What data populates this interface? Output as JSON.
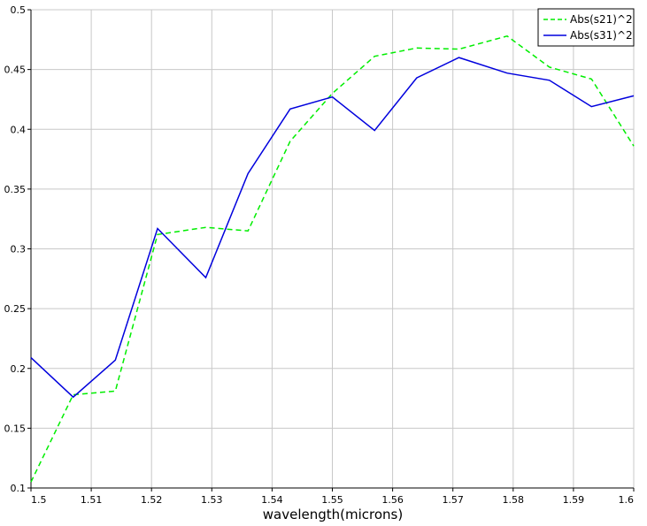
{
  "chart_data": {
    "type": "line",
    "title": "",
    "xlabel": "wavelength(microns)",
    "ylabel": "",
    "xlim": [
      1.5,
      1.6
    ],
    "ylim": [
      0.1,
      0.5
    ],
    "xticks": [
      "1.5",
      "1.51",
      "1.52",
      "1.53",
      "1.54",
      "1.55",
      "1.56",
      "1.57",
      "1.58",
      "1.59",
      "1.6"
    ],
    "yticks": [
      "0.1",
      "0.15",
      "0.2",
      "0.25",
      "0.3",
      "0.35",
      "0.4",
      "0.45",
      "0.5"
    ],
    "grid": true,
    "legend_position": "top-right",
    "x": [
      1.5,
      1.507,
      1.514,
      1.521,
      1.529,
      1.536,
      1.543,
      1.55,
      1.557,
      1.564,
      1.571,
      1.579,
      1.586,
      1.593,
      1.6
    ],
    "series": [
      {
        "name": "Abs(s21)^2",
        "color": "#00ee00",
        "style": "dashed",
        "values": [
          0.105,
          0.178,
          0.181,
          0.312,
          0.318,
          0.315,
          0.39,
          0.43,
          0.461,
          0.468,
          0.467,
          0.478,
          0.452,
          0.442,
          0.386
        ]
      },
      {
        "name": "Abs(s31)^2",
        "color": "#0000dd",
        "style": "solid",
        "values": [
          0.209,
          0.176,
          0.207,
          0.317,
          0.276,
          0.363,
          0.417,
          0.427,
          0.399,
          0.443,
          0.46,
          0.447,
          0.441,
          0.419,
          0.428
        ]
      }
    ]
  }
}
